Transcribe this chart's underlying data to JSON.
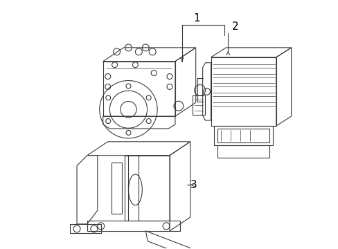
{
  "background_color": "#ffffff",
  "line_color": "#3a3a3a",
  "line_width": 0.8,
  "label_color": "#000000",
  "figsize": [
    4.89,
    3.6
  ],
  "dpi": 100,
  "label1": "1",
  "label2": "2",
  "label3": "3"
}
